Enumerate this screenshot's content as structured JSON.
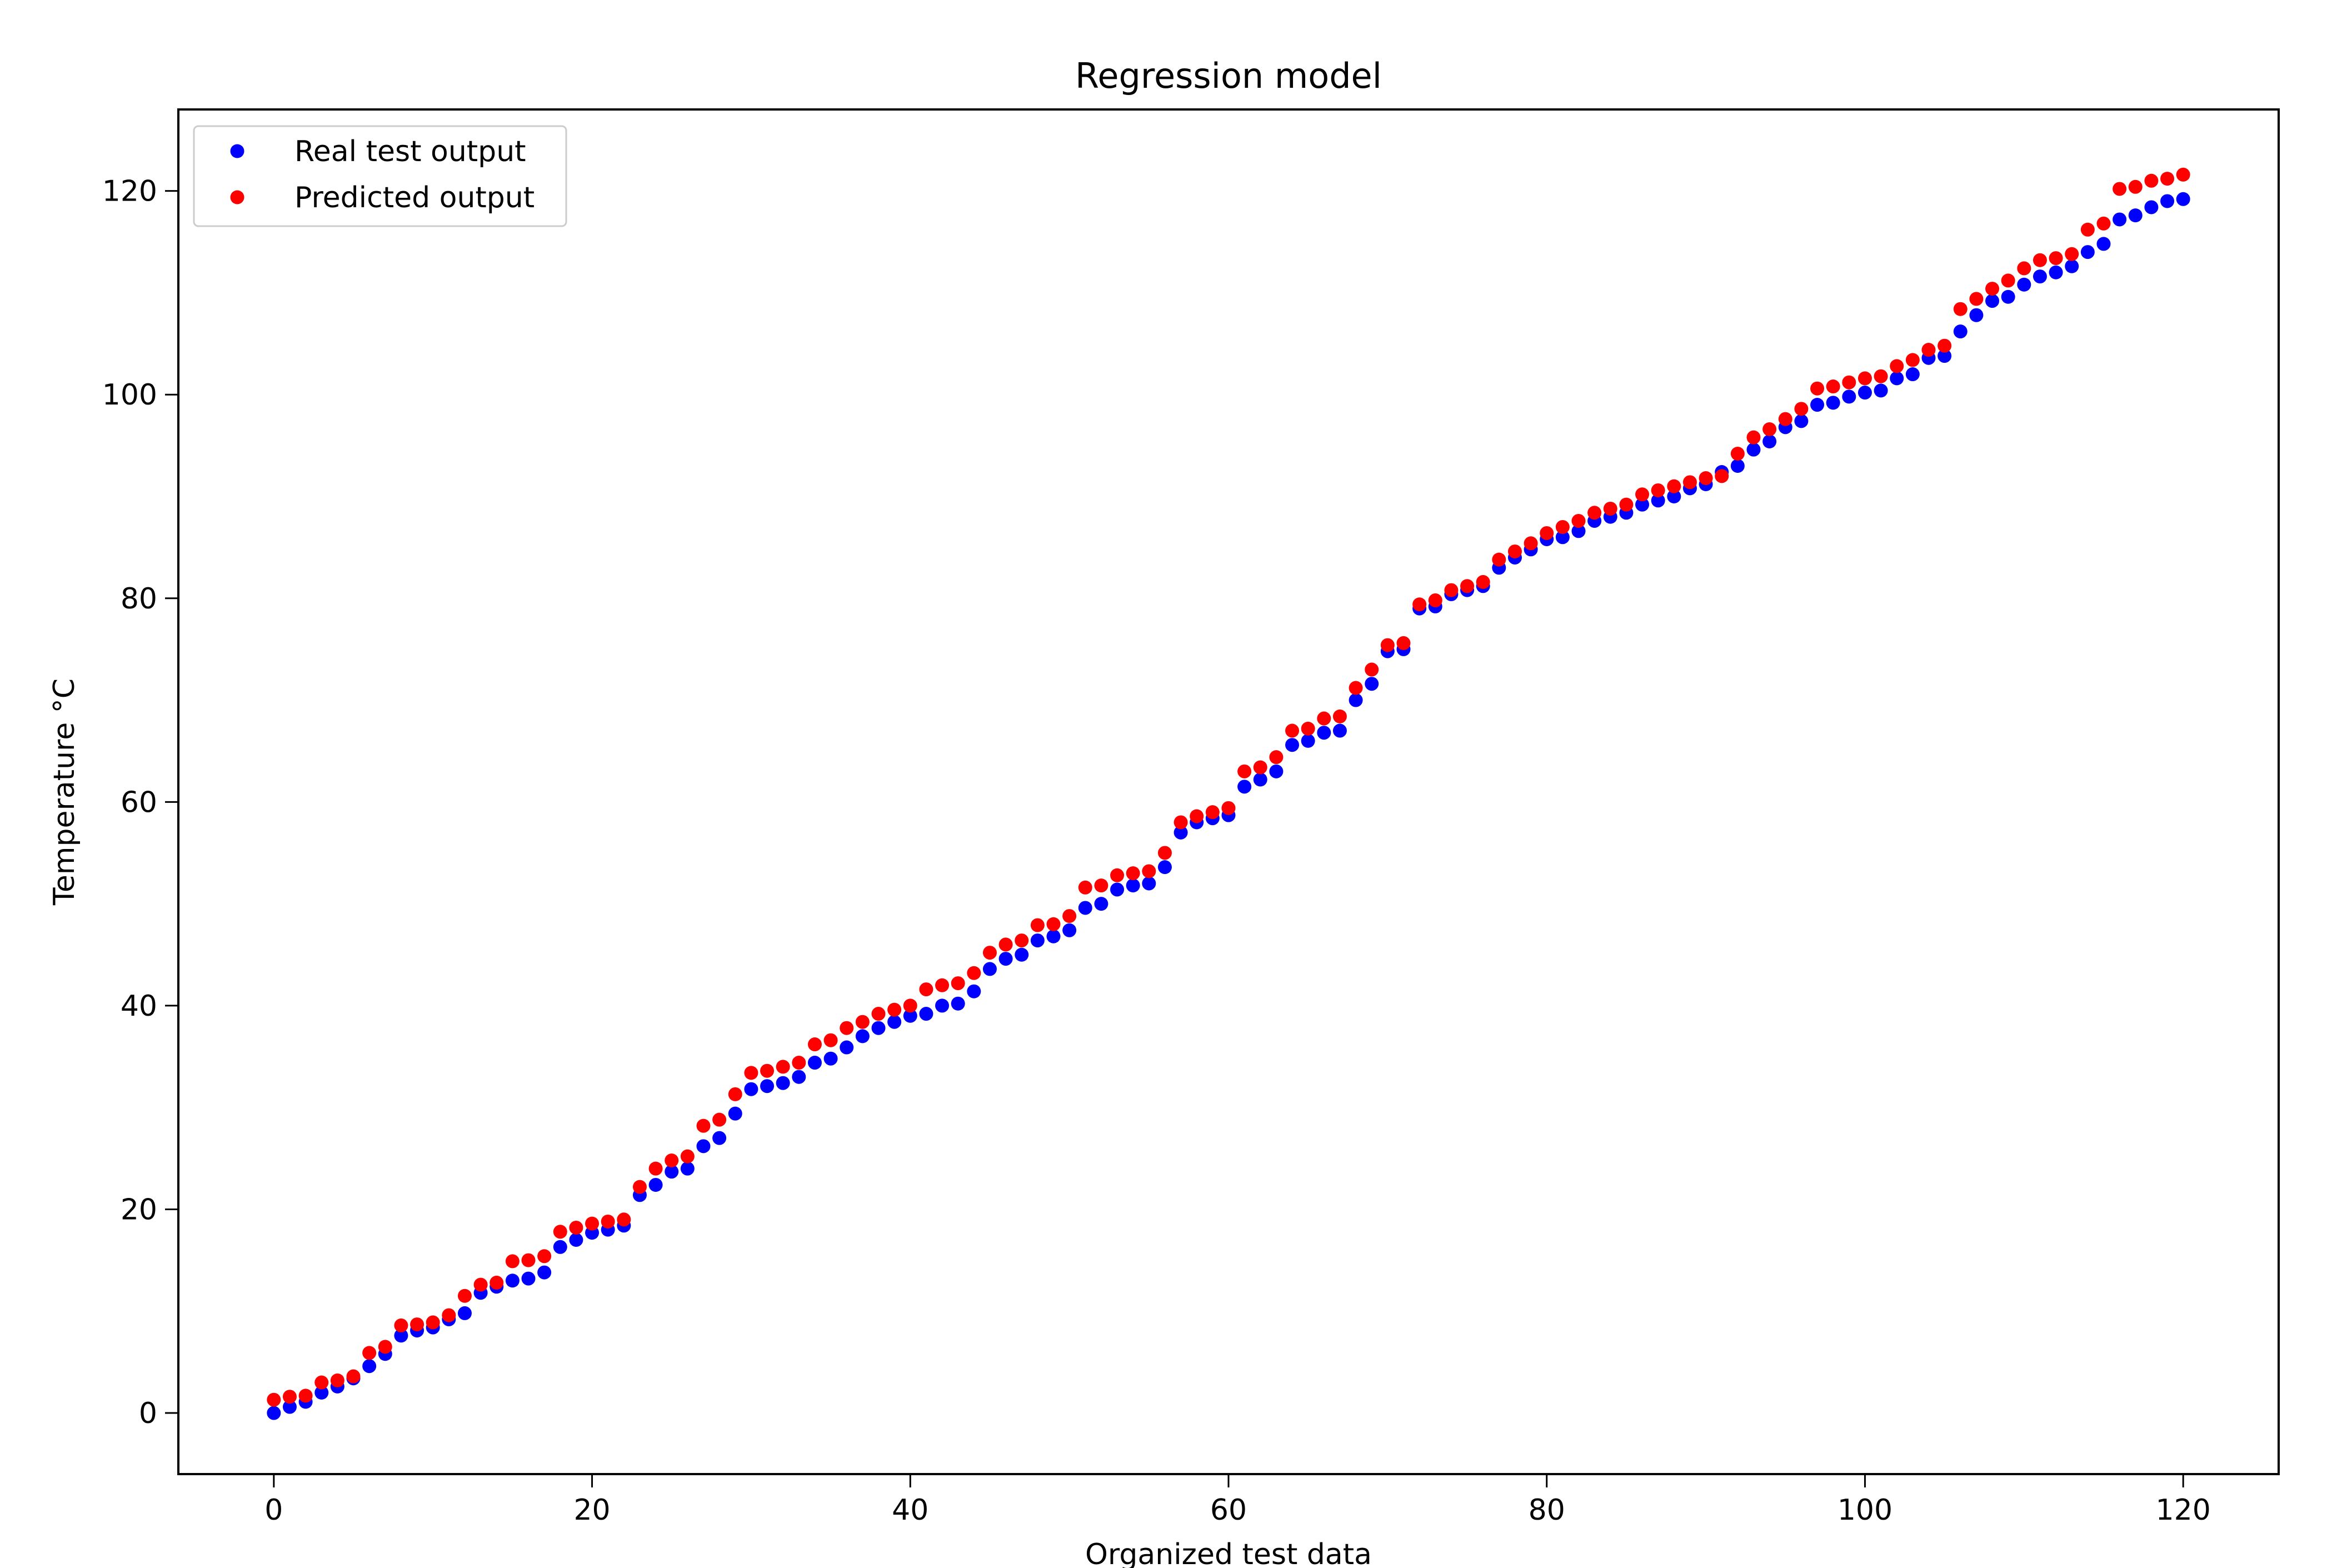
{
  "chart_data": {
    "type": "scatter",
    "title": "Regression model",
    "xlabel": "Organized test data",
    "ylabel": "Temperature °C",
    "xlim": [
      -6,
      126
    ],
    "ylim": [
      -6,
      128
    ],
    "xticks": [
      0,
      20,
      40,
      60,
      80,
      100,
      120
    ],
    "yticks": [
      0,
      20,
      40,
      60,
      80,
      100,
      120
    ],
    "grid": false,
    "legend_position": "top-left",
    "x": [
      0,
      1,
      2,
      3,
      4,
      5,
      6,
      7,
      8,
      9,
      10,
      11,
      12,
      13,
      14,
      15,
      16,
      17,
      18,
      19,
      20,
      21,
      22,
      23,
      24,
      25,
      26,
      27,
      28,
      29,
      30,
      31,
      32,
      33,
      34,
      35,
      36,
      37,
      38,
      39,
      40,
      41,
      42,
      43,
      44,
      45,
      46,
      47,
      48,
      49,
      50,
      51,
      52,
      53,
      54,
      55,
      56,
      57,
      58,
      59,
      60,
      61,
      62,
      63,
      64,
      65,
      66,
      67,
      68,
      69,
      70,
      71,
      72,
      73,
      74,
      75,
      76,
      77,
      78,
      79,
      80,
      81,
      82,
      83,
      84,
      85,
      86,
      87,
      88,
      89,
      90,
      91,
      92,
      93,
      94,
      95,
      96,
      97,
      98,
      99,
      100,
      101,
      102,
      103,
      104,
      105,
      106,
      107,
      108,
      109,
      110,
      111,
      112,
      113,
      114,
      115,
      116,
      117,
      118,
      119,
      120
    ],
    "series": [
      {
        "name": "Real test output",
        "color": "#0000ff",
        "values": [
          0.0,
          0.6,
          1.1,
          2.0,
          2.6,
          3.4,
          4.6,
          5.8,
          7.6,
          8.1,
          8.4,
          9.2,
          9.8,
          11.8,
          12.4,
          13.0,
          13.2,
          13.8,
          16.3,
          17.0,
          17.7,
          18.0,
          18.4,
          21.4,
          22.4,
          23.7,
          24.0,
          26.2,
          27.0,
          29.4,
          31.8,
          32.1,
          32.4,
          33.0,
          34.4,
          34.8,
          35.9,
          37.0,
          37.8,
          38.4,
          39.0,
          39.2,
          40.0,
          40.2,
          41.4,
          43.6,
          44.6,
          45.0,
          46.4,
          46.8,
          47.4,
          49.6,
          50.0,
          51.4,
          51.8,
          52.0,
          53.6,
          57.0,
          58.0,
          58.4,
          58.7,
          61.5,
          62.2,
          63.0,
          65.6,
          66.0,
          66.8,
          67.0,
          70.0,
          71.6,
          74.8,
          75.0,
          79.0,
          79.2,
          80.4,
          80.8,
          81.2,
          83.0,
          84.0,
          84.8,
          85.8,
          86.0,
          86.6,
          87.6,
          88.0,
          88.4,
          89.2,
          89.6,
          90.0,
          90.8,
          91.2,
          92.4,
          93.0,
          94.6,
          95.4,
          96.8,
          97.4,
          99.0,
          99.2,
          99.8,
          100.2,
          100.4,
          101.6,
          102.0,
          103.6,
          103.8,
          106.2,
          107.8,
          109.2,
          109.6,
          110.8,
          111.6,
          112.0,
          112.6,
          114.0,
          114.8,
          117.2,
          117.6,
          118.4,
          119.0,
          119.2
        ]
      },
      {
        "name": "Predicted output",
        "color": "#ff0000",
        "values": [
          1.3,
          1.6,
          1.7,
          3.0,
          3.2,
          3.6,
          5.9,
          6.5,
          8.6,
          8.7,
          8.9,
          9.6,
          11.5,
          12.6,
          12.8,
          14.9,
          15.0,
          15.4,
          17.8,
          18.2,
          18.6,
          18.8,
          19.0,
          22.2,
          24.0,
          24.8,
          25.2,
          28.2,
          28.8,
          31.3,
          33.4,
          33.6,
          34.0,
          34.4,
          36.2,
          36.6,
          37.8,
          38.4,
          39.2,
          39.6,
          40.0,
          41.6,
          42.0,
          42.2,
          43.2,
          45.2,
          46.0,
          46.4,
          47.9,
          48.0,
          48.8,
          51.6,
          51.8,
          52.8,
          53.0,
          53.2,
          55.0,
          58.0,
          58.6,
          59.0,
          59.4,
          63.0,
          63.4,
          64.4,
          67.0,
          67.2,
          68.2,
          68.4,
          71.2,
          73.0,
          75.4,
          75.6,
          79.4,
          79.8,
          80.8,
          81.2,
          81.6,
          83.8,
          84.6,
          85.4,
          86.4,
          87.0,
          87.6,
          88.4,
          88.8,
          89.2,
          90.2,
          90.6,
          91.0,
          91.4,
          91.8,
          92.0,
          94.2,
          95.8,
          96.6,
          97.6,
          98.6,
          100.6,
          100.8,
          101.2,
          101.6,
          101.8,
          102.8,
          103.4,
          104.4,
          104.8,
          108.4,
          109.4,
          110.4,
          111.2,
          112.4,
          113.2,
          113.4,
          113.8,
          116.2,
          116.8,
          120.2,
          120.4,
          121.0,
          121.2,
          121.6
        ]
      }
    ]
  }
}
